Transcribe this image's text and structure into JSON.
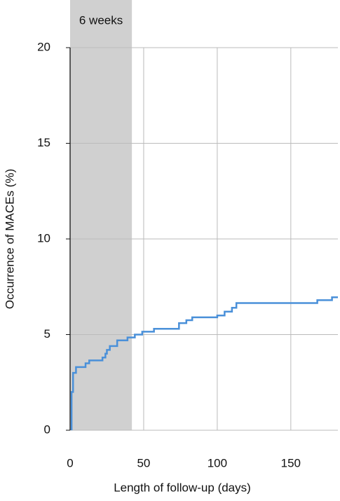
{
  "chart_data": {
    "type": "line",
    "step": "post",
    "xlabel": "Length of follow-up (days)",
    "ylabel": "Occurrence of MACEs (%)",
    "x": [
      1,
      1,
      2,
      4,
      10.5,
      13,
      22,
      24,
      25,
      27,
      32,
      39,
      44,
      49,
      57,
      74,
      79,
      83,
      100,
      105,
      110,
      113,
      168,
      178,
      182
    ],
    "values": [
      0,
      2,
      3,
      3.3,
      3.5,
      3.65,
      3.8,
      4.0,
      4.2,
      4.4,
      4.7,
      4.85,
      5.0,
      5.15,
      5.3,
      5.6,
      5.75,
      5.9,
      6.0,
      6.2,
      6.4,
      6.65,
      6.8,
      6.95,
      6.95
    ],
    "color": "#4a90d9",
    "shade": {
      "range": [
        0,
        42
      ],
      "label": "6 weeks",
      "color": "#d0d0d0"
    },
    "xlim": [
      0,
      182
    ],
    "xticks": [
      0,
      50,
      100,
      150
    ],
    "ylim": [
      0,
      20
    ],
    "yticks": [
      0,
      5,
      10,
      15,
      20
    ],
    "grid": true
  }
}
